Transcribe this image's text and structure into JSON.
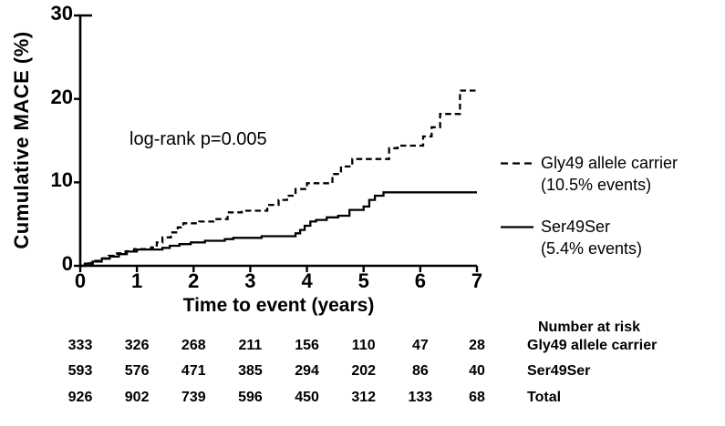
{
  "chart_data": {
    "type": "line",
    "subtype": "kaplan-meier-step",
    "title": "",
    "ylabel": "Cumulative MACE (%)",
    "xlabel": "Time to event (years)",
    "annotation": "log-rank p=0.005",
    "xlim": [
      0,
      7
    ],
    "ylim": [
      0,
      30
    ],
    "xticks": [
      0,
      1,
      2,
      3,
      4,
      5,
      6,
      7
    ],
    "yticks": [
      0,
      10,
      20,
      30
    ],
    "grid": false,
    "line_color": "#000000",
    "legend_position": "right",
    "series": [
      {
        "name": "Gly49 allele carrier",
        "sub": "(10.5% events)",
        "style": "dashed",
        "points": [
          [
            0,
            0
          ],
          [
            0.08,
            0.3
          ],
          [
            0.2,
            0.6
          ],
          [
            0.35,
            0.9
          ],
          [
            0.5,
            1.2
          ],
          [
            0.65,
            1.5
          ],
          [
            0.8,
            1.75
          ],
          [
            0.95,
            2.0
          ],
          [
            1.25,
            2.2
          ],
          [
            1.35,
            2.8
          ],
          [
            1.45,
            3.4
          ],
          [
            1.6,
            4.0
          ],
          [
            1.72,
            4.6
          ],
          [
            1.82,
            5.1
          ],
          [
            2.1,
            5.3
          ],
          [
            2.35,
            5.6
          ],
          [
            2.6,
            6.4
          ],
          [
            2.85,
            6.6
          ],
          [
            3.3,
            7.3
          ],
          [
            3.5,
            7.9
          ],
          [
            3.65,
            8.4
          ],
          [
            3.8,
            9.2
          ],
          [
            4.0,
            9.9
          ],
          [
            4.45,
            11.0
          ],
          [
            4.6,
            11.9
          ],
          [
            4.8,
            12.8
          ],
          [
            5.45,
            14.1
          ],
          [
            5.6,
            14.4
          ],
          [
            6.05,
            15.5
          ],
          [
            6.2,
            16.6
          ],
          [
            6.35,
            18.2
          ],
          [
            6.7,
            21.0
          ],
          [
            7.0,
            21.0
          ]
        ]
      },
      {
        "name": "Ser49Ser",
        "sub": "(5.4% events)",
        "style": "solid",
        "points": [
          [
            0,
            0
          ],
          [
            0.08,
            0.25
          ],
          [
            0.22,
            0.5
          ],
          [
            0.38,
            0.85
          ],
          [
            0.52,
            1.1
          ],
          [
            0.68,
            1.4
          ],
          [
            0.82,
            1.7
          ],
          [
            1.0,
            1.95
          ],
          [
            1.45,
            2.15
          ],
          [
            1.58,
            2.4
          ],
          [
            1.75,
            2.6
          ],
          [
            1.95,
            2.8
          ],
          [
            2.2,
            3.0
          ],
          [
            2.55,
            3.2
          ],
          [
            2.7,
            3.35
          ],
          [
            3.2,
            3.55
          ],
          [
            3.8,
            3.9
          ],
          [
            3.88,
            4.3
          ],
          [
            3.96,
            4.8
          ],
          [
            4.06,
            5.3
          ],
          [
            4.16,
            5.5
          ],
          [
            4.35,
            5.8
          ],
          [
            4.55,
            6.0
          ],
          [
            4.75,
            6.7
          ],
          [
            5.0,
            7.1
          ],
          [
            5.1,
            7.9
          ],
          [
            5.2,
            8.4
          ],
          [
            5.35,
            8.8
          ],
          [
            7.0,
            8.8
          ]
        ]
      }
    ],
    "number_at_risk": {
      "header": "Number at risk",
      "timepoints": [
        0,
        1,
        2,
        3,
        4,
        5,
        6,
        7
      ],
      "rows": [
        {
          "label": "Gly49 allele carrier",
          "values": [
            333,
            326,
            268,
            211,
            156,
            110,
            47,
            28
          ]
        },
        {
          "label": "Ser49Ser",
          "values": [
            593,
            576,
            471,
            385,
            294,
            202,
            86,
            40
          ]
        },
        {
          "label": "Total",
          "values": [
            926,
            902,
            739,
            596,
            450,
            312,
            133,
            68
          ]
        }
      ]
    }
  }
}
